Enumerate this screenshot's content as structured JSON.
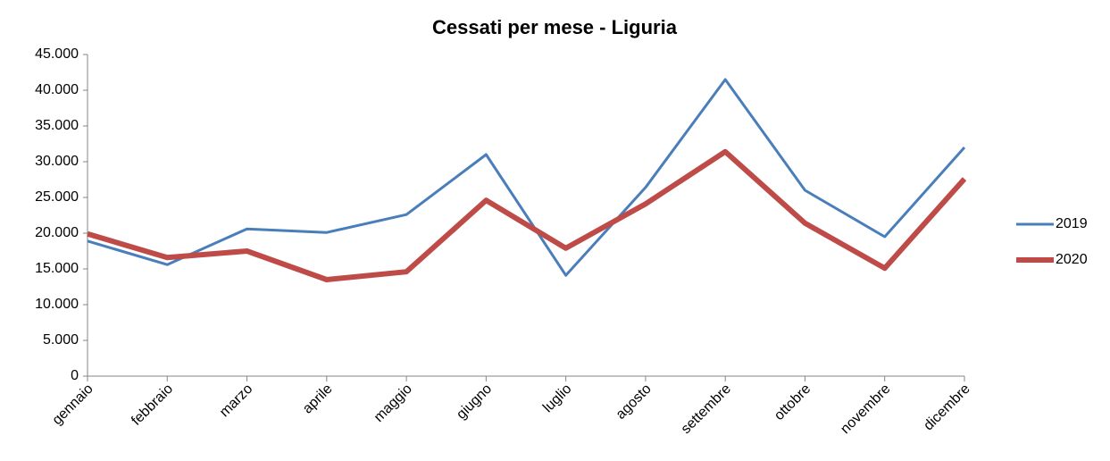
{
  "chart_data": {
    "type": "line",
    "title": "Cessati per mese - Liguria",
    "categories": [
      "gennaio",
      "febbraio",
      "marzo",
      "aprile",
      "maggio",
      "giugno",
      "luglio",
      "agosto",
      "settembre",
      "ottobre",
      "novembre",
      "dicembre"
    ],
    "series": [
      {
        "name": "2019",
        "color": "#4a7ebb",
        "values": [
          18900,
          15600,
          20600,
          20100,
          22600,
          31000,
          14100,
          26400,
          41500,
          26000,
          19500,
          32000
        ]
      },
      {
        "name": "2020",
        "color": "#be4b48",
        "values": [
          19900,
          16600,
          17500,
          13500,
          14600,
          24600,
          17900,
          24100,
          31400,
          21400,
          15100,
          27600
        ]
      }
    ],
    "ylim": [
      0,
      45000
    ],
    "yticks": [
      0,
      {
        "value": 5000,
        "label": "5.000"
      },
      {
        "value": 10000,
        "label": "10.000"
      },
      {
        "value": 15000,
        "label": "15.000"
      },
      {
        "value": 20000,
        "label": "20.000"
      },
      {
        "value": 25000,
        "label": "25.000"
      },
      {
        "value": 30000,
        "label": "30.000"
      },
      {
        "value": 35000,
        "label": "35.000"
      },
      {
        "value": 40000,
        "label": "40.000"
      },
      {
        "value": 45000,
        "label": "45.000"
      }
    ],
    "legend": "right"
  }
}
